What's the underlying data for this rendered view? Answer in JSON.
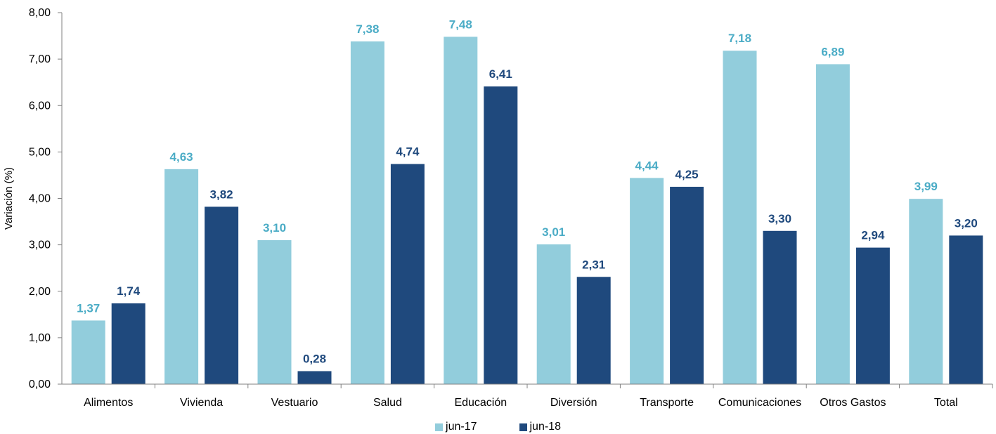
{
  "chart_data": {
    "type": "bar",
    "title": "",
    "xlabel": "",
    "ylabel": "Variación (%)",
    "ylim": [
      0,
      8
    ],
    "yticks": [
      "0,00",
      "1,00",
      "2,00",
      "3,00",
      "4,00",
      "5,00",
      "6,00",
      "7,00",
      "8,00"
    ],
    "grid": false,
    "legend_position": "bottom",
    "categories": [
      "Alimentos",
      "Vivienda",
      "Vestuario",
      "Salud",
      "Educación",
      "Diversión",
      "Transporte",
      "Comunicaciones",
      "Otros Gastos",
      "Total"
    ],
    "series": [
      {
        "name": "jun-17",
        "color": "#92cddc",
        "label_color": "#4bacc6",
        "values": [
          1.37,
          4.63,
          3.1,
          7.38,
          7.48,
          3.01,
          4.44,
          7.18,
          6.89,
          3.99
        ],
        "labels": [
          "1,37",
          "4,63",
          "3,10",
          "7,38",
          "7,48",
          "3,01",
          "4,44",
          "7,18",
          "6,89",
          "3,99"
        ]
      },
      {
        "name": "jun-18",
        "color": "#1f497d",
        "label_color": "#1f497d",
        "values": [
          1.74,
          3.82,
          0.28,
          4.74,
          6.41,
          2.31,
          4.25,
          3.3,
          2.94,
          3.2
        ],
        "labels": [
          "1,74",
          "3,82",
          "0,28",
          "4,74",
          "6,41",
          "2,31",
          "4,25",
          "3,30",
          "2,94",
          "3,20"
        ]
      }
    ]
  }
}
